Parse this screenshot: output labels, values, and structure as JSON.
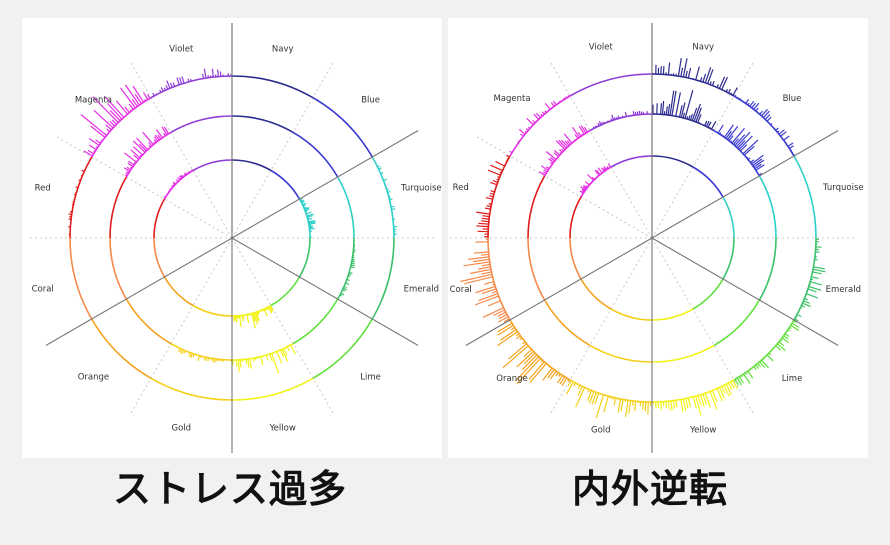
{
  "diagrams": [
    {
      "caption": "ストレス過多",
      "sector_labels": [
        "Navy",
        "Blue",
        "Turquoise",
        "Emerald",
        "Lime",
        "Yellow",
        "Gold",
        "Orange",
        "Coral",
        "Red",
        "Magenta",
        "Violet"
      ]
    },
    {
      "caption": "内外逆転",
      "sector_labels": [
        "Navy",
        "Blue",
        "Turquoise",
        "Emerald",
        "Lime",
        "Yellow",
        "Gold",
        "Orange",
        "Coral",
        "Red",
        "Magenta",
        "Violet"
      ]
    }
  ],
  "colors": {
    "Navy": "#2b2b8f",
    "Blue": "#3a3ad0",
    "Turquoise": "#2ecfc8",
    "Emerald": "#3cc26a",
    "Lime": "#5fe03a",
    "Yellow": "#f2f21c",
    "Gold": "#f5cf1a",
    "Orange": "#f5a21c",
    "Coral": "#f58a4a",
    "Red": "#e01b1b",
    "Magenta": "#e52de5",
    "Violet": "#8d3ad6"
  }
}
